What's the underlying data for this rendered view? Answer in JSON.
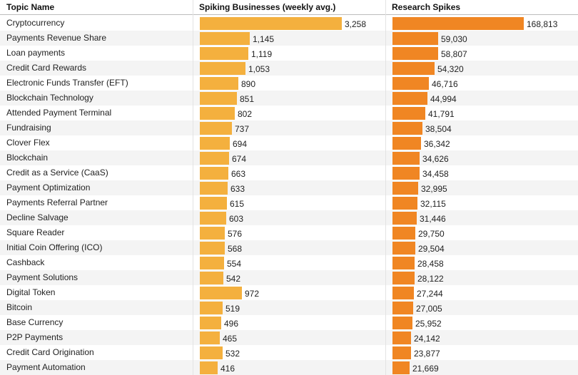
{
  "header": {
    "topic_label": "Topic Name",
    "spiking_label": "Spiking Businesses (weekly avg.)",
    "research_label": "Research Spikes"
  },
  "colors": {
    "spiking_bar": "#f4b03e",
    "research_bar": "#f08623",
    "row_alt": "#f4f4f4"
  },
  "chart_data": {
    "type": "bar",
    "orientation": "horizontal",
    "categories": [
      "Cryptocurrency",
      "Payments Revenue Share",
      "Loan payments",
      "Credit Card Rewards",
      "Electronic Funds Transfer (EFT)",
      "Blockchain Technology",
      "Attended Payment Terminal",
      "Fundraising",
      "Clover Flex",
      "Blockchain",
      "Credit as a Service (CaaS)",
      "Payment Optimization",
      "Payments Referral Partner",
      "Decline Salvage",
      "Square Reader",
      "Initial Coin Offering (ICO)",
      "Cashback",
      "Payment Solutions",
      "Digital Token",
      "Bitcoin",
      "Base Currency",
      "P2P Payments",
      "Credit Card Origination",
      "Payment Automation"
    ],
    "series": [
      {
        "name": "Spiking Businesses (weekly avg.)",
        "values": [
          3258,
          1145,
          1119,
          1053,
          890,
          851,
          802,
          737,
          694,
          674,
          663,
          633,
          615,
          603,
          576,
          568,
          554,
          542,
          972,
          519,
          496,
          465,
          532,
          416
        ],
        "labels": [
          "3,258",
          "1,145",
          "1,119",
          "1,053",
          "890",
          "851",
          "802",
          "737",
          "694",
          "674",
          "663",
          "633",
          "615",
          "603",
          "576",
          "568",
          "554",
          "542",
          "972",
          "519",
          "496",
          "465",
          "532",
          "416"
        ],
        "max": 3258
      },
      {
        "name": "Research Spikes",
        "values": [
          168813,
          59030,
          58807,
          54320,
          46716,
          44994,
          41791,
          38504,
          36342,
          34626,
          34458,
          32995,
          32115,
          31446,
          29750,
          29504,
          28458,
          28122,
          27244,
          27005,
          25952,
          24142,
          23877,
          21669
        ],
        "labels": [
          "168,813",
          "59,030",
          "58,807",
          "54,320",
          "46,716",
          "44,994",
          "41,791",
          "38,504",
          "36,342",
          "34,626",
          "34,458",
          "32,995",
          "32,115",
          "31,446",
          "29,750",
          "29,504",
          "28,458",
          "28,122",
          "27,244",
          "27,005",
          "25,952",
          "24,142",
          "23,877",
          "21,669"
        ],
        "max": 168813
      }
    ]
  }
}
